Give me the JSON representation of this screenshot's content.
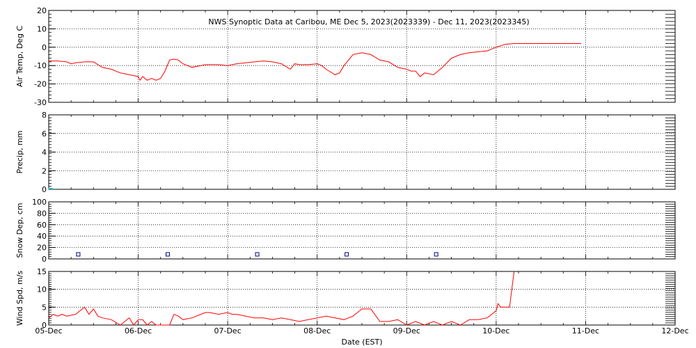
{
  "title": "NWS Synoptic Data at Caribou, ME   Dec  5, 2023(2023339) - Dec 11, 2023(2023345)",
  "xlabel": "Date (EST)",
  "x_ticks": [
    "05-Dec",
    "06-Dec",
    "07-Dec",
    "08-Dec",
    "09-Dec",
    "10-Dec",
    "11-Dec",
    "12-Dec"
  ],
  "colors": {
    "line": "#ff0000",
    "precip": "#00c0c0",
    "snow": "#000080",
    "frame": "#000000"
  },
  "chart_data": [
    {
      "type": "line",
      "ylabel": "Air Temp, Deg C",
      "ylim": [
        -30,
        20
      ],
      "y_ticks": [
        20,
        10,
        0,
        -10,
        -20,
        -30
      ],
      "grid": true,
      "series": [
        {
          "x": [
            0,
            0.1,
            0.2,
            0.25,
            0.3,
            0.4,
            0.5,
            0.6,
            0.7,
            0.8,
            0.9,
            1.0,
            1.02,
            1.05,
            1.1,
            1.15,
            1.2,
            1.25,
            1.3,
            1.35,
            1.4,
            1.45,
            1.5,
            1.6,
            1.7,
            1.75,
            1.8,
            1.9,
            2.0,
            2.1,
            2.2,
            2.3,
            2.4,
            2.5,
            2.6,
            2.7,
            2.75,
            2.8,
            2.9,
            3.0,
            3.05,
            3.1,
            3.2,
            3.25,
            3.3,
            3.4,
            3.5,
            3.6,
            3.7,
            3.8,
            3.9,
            4.0,
            4.05,
            4.1,
            4.15,
            4.2,
            4.3,
            4.4,
            4.5,
            4.6,
            4.7,
            4.8,
            4.9,
            5.0,
            5.1,
            5.2,
            5.3,
            5.5,
            5.7,
            5.95
          ],
          "y": [
            -7.5,
            -7.5,
            -8,
            -9,
            -8.5,
            -8,
            -8,
            -11,
            -12,
            -14,
            -15,
            -16,
            -18,
            -16,
            -18,
            -17,
            -18,
            -17,
            -13,
            -7,
            -6.5,
            -7,
            -9,
            -11,
            -10,
            -9.5,
            -9.5,
            -9.5,
            -10,
            -9,
            -8.5,
            -8,
            -7.5,
            -8,
            -9,
            -12,
            -9,
            -9.5,
            -9.5,
            -9,
            -10,
            -12,
            -15,
            -14,
            -10,
            -4,
            -3,
            -4,
            -7,
            -8,
            -11,
            -12,
            -13,
            -13,
            -16,
            -14,
            -15,
            -11,
            -6,
            -4,
            -3,
            -2.5,
            -2,
            0,
            1.5,
            2,
            2,
            2,
            2,
            2
          ]
        }
      ]
    },
    {
      "type": "bar",
      "ylabel": "Precip, mm",
      "ylim": [
        0,
        8
      ],
      "y_ticks": [
        8,
        6,
        4,
        2,
        0
      ],
      "grid": true,
      "x": [
        0.02
      ],
      "values": [
        0
      ]
    },
    {
      "type": "scatter",
      "ylabel": "Snow Dep, cm",
      "ylim": [
        0,
        100
      ],
      "y_ticks": [
        100,
        80,
        60,
        40,
        20,
        0
      ],
      "grid": true,
      "x": [
        0.33,
        1.33,
        2.33,
        3.33,
        4.33
      ],
      "y": [
        8,
        8,
        8,
        8,
        8
      ]
    },
    {
      "type": "line",
      "ylabel": "Wind Spd, m/s",
      "ylim": [
        0,
        15
      ],
      "y_ticks": [
        15,
        10,
        5,
        0
      ],
      "grid": true,
      "series": [
        {
          "x": [
            0,
            0.05,
            0.1,
            0.15,
            0.2,
            0.3,
            0.35,
            0.4,
            0.45,
            0.5,
            0.55,
            0.6,
            0.7,
            0.8,
            0.85,
            0.9,
            0.95,
            1.0,
            1.05,
            1.1,
            1.15,
            1.2,
            1.25,
            1.3,
            1.35,
            1.4,
            1.45,
            1.5,
            1.6,
            1.7,
            1.75,
            1.8,
            1.9,
            2.0,
            2.05,
            2.1,
            2.2,
            2.3,
            2.4,
            2.5,
            2.6,
            2.7,
            2.8,
            2.9,
            3.0,
            3.1,
            3.2,
            3.3,
            3.4,
            3.5,
            3.6,
            3.7,
            3.8,
            3.9,
            4.0,
            4.1,
            4.2,
            4.3,
            4.4,
            4.5,
            4.6,
            4.7,
            4.8,
            4.9,
            5.0,
            5.02,
            5.05,
            5.1,
            5.15,
            5.2
          ],
          "y": [
            2,
            3,
            2.5,
            3,
            2.5,
            3,
            4,
            5,
            3,
            4.5,
            2.5,
            2,
            1.5,
            0,
            1,
            2,
            0,
            1.5,
            1.5,
            0,
            1,
            0,
            0,
            0,
            0,
            3,
            2.5,
            1.5,
            2,
            3,
            3.5,
            3.5,
            3,
            3.5,
            3,
            3,
            2.5,
            2,
            2,
            1.5,
            2,
            1.5,
            1,
            1.5,
            2,
            2.5,
            2,
            1.5,
            2.5,
            4.5,
            4.5,
            1,
            1,
            1.5,
            0,
            1,
            0,
            1,
            0,
            1,
            0,
            1.5,
            1.5,
            2,
            4,
            6,
            5,
            5,
            5,
            15
          ]
        }
      ]
    }
  ]
}
